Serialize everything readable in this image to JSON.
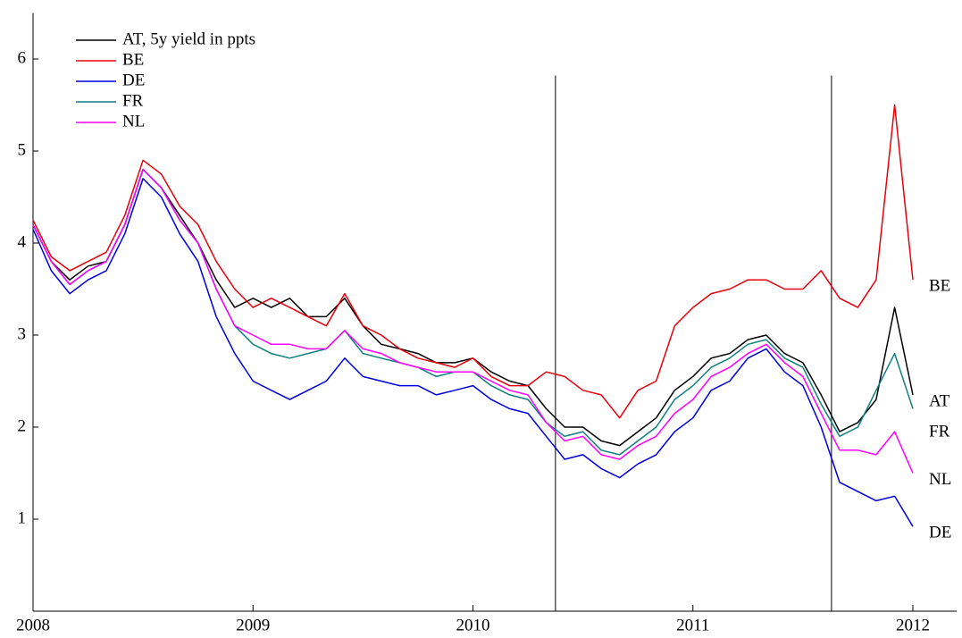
{
  "chart_data": {
    "type": "line",
    "x": [
      2008,
      2008.083,
      2008.167,
      2008.25,
      2008.333,
      2008.417,
      2008.5,
      2008.583,
      2008.667,
      2008.75,
      2008.833,
      2008.917,
      2009,
      2009.083,
      2009.167,
      2009.25,
      2009.333,
      2009.417,
      2009.5,
      2009.583,
      2009.667,
      2009.75,
      2009.833,
      2009.917,
      2010,
      2010.083,
      2010.167,
      2010.25,
      2010.333,
      2010.417,
      2010.5,
      2010.583,
      2010.667,
      2010.75,
      2010.833,
      2010.917,
      2011,
      2011.083,
      2011.167,
      2011.25,
      2011.333,
      2011.417,
      2011.5,
      2011.583,
      2011.667,
      2011.75,
      2011.833,
      2011.917,
      2012
    ],
    "series": [
      {
        "name": "AT, 5y yield in ppts",
        "color": "#000000",
        "values": [
          4.2,
          3.8,
          3.6,
          3.75,
          3.8,
          4.2,
          4.8,
          4.6,
          4.3,
          4.0,
          3.6,
          3.3,
          3.4,
          3.3,
          3.4,
          3.2,
          3.2,
          3.4,
          3.1,
          2.9,
          2.85,
          2.8,
          2.7,
          2.7,
          2.75,
          2.6,
          2.5,
          2.45,
          2.2,
          2.0,
          2.0,
          1.85,
          1.8,
          1.95,
          2.1,
          2.4,
          2.55,
          2.75,
          2.8,
          2.95,
          3.0,
          2.8,
          2.7,
          2.35,
          1.95,
          2.05,
          2.3,
          3.3,
          2.35
        ]
      },
      {
        "name": "BE",
        "color": "#e8000b",
        "values": [
          4.25,
          3.85,
          3.7,
          3.8,
          3.9,
          4.3,
          4.9,
          4.75,
          4.4,
          4.2,
          3.8,
          3.5,
          3.3,
          3.4,
          3.3,
          3.2,
          3.1,
          3.45,
          3.1,
          3.0,
          2.85,
          2.75,
          2.7,
          2.65,
          2.75,
          2.55,
          2.45,
          2.45,
          2.6,
          2.55,
          2.4,
          2.35,
          2.1,
          2.4,
          2.5,
          3.1,
          3.3,
          3.45,
          3.5,
          3.6,
          3.6,
          3.5,
          3.5,
          3.7,
          3.4,
          3.3,
          3.6,
          5.5,
          3.6
        ]
      },
      {
        "name": "DE",
        "color": "#0000e0",
        "values": [
          4.15,
          3.7,
          3.45,
          3.6,
          3.7,
          4.1,
          4.7,
          4.5,
          4.1,
          3.8,
          3.2,
          2.8,
          2.5,
          2.4,
          2.3,
          2.4,
          2.5,
          2.75,
          2.55,
          2.5,
          2.45,
          2.45,
          2.35,
          2.4,
          2.45,
          2.3,
          2.2,
          2.15,
          1.9,
          1.65,
          1.7,
          1.55,
          1.45,
          1.6,
          1.7,
          1.95,
          2.1,
          2.4,
          2.5,
          2.75,
          2.85,
          2.6,
          2.45,
          2.0,
          1.4,
          1.3,
          1.2,
          1.25,
          0.92
        ]
      },
      {
        "name": "FR",
        "color": "#0f7f7f",
        "values": [
          4.2,
          3.8,
          3.55,
          3.7,
          3.8,
          4.2,
          4.8,
          4.6,
          4.25,
          4.0,
          3.5,
          3.1,
          2.9,
          2.8,
          2.75,
          2.8,
          2.85,
          3.05,
          2.8,
          2.75,
          2.7,
          2.65,
          2.55,
          2.6,
          2.6,
          2.45,
          2.35,
          2.3,
          2.05,
          1.9,
          1.95,
          1.75,
          1.7,
          1.85,
          2.0,
          2.3,
          2.45,
          2.65,
          2.75,
          2.9,
          2.95,
          2.75,
          2.65,
          2.25,
          1.9,
          2.0,
          2.4,
          2.8,
          2.2
        ]
      },
      {
        "name": "NL",
        "color": "#ff00ff",
        "values": [
          4.2,
          3.8,
          3.55,
          3.7,
          3.8,
          4.2,
          4.8,
          4.6,
          4.25,
          4.0,
          3.5,
          3.1,
          3.0,
          2.9,
          2.9,
          2.85,
          2.85,
          3.05,
          2.85,
          2.8,
          2.7,
          2.65,
          2.6,
          2.6,
          2.6,
          2.5,
          2.4,
          2.35,
          2.05,
          1.85,
          1.9,
          1.7,
          1.65,
          1.8,
          1.9,
          2.15,
          2.3,
          2.55,
          2.65,
          2.8,
          2.9,
          2.7,
          2.55,
          2.15,
          1.75,
          1.75,
          1.7,
          1.95,
          1.5
        ]
      }
    ],
    "end_labels": [
      "AT",
      "BE",
      "DE",
      "FR",
      "NL"
    ],
    "vlines": [
      2010.375,
      2011.63
    ],
    "xlim": [
      2008,
      2012.2
    ],
    "xticks": [
      2008,
      2009,
      2010,
      2011,
      2012
    ],
    "ylim": [
      0,
      6.5
    ],
    "yticks": [
      1,
      2,
      3,
      4,
      5,
      6
    ],
    "legend": "upper left"
  }
}
